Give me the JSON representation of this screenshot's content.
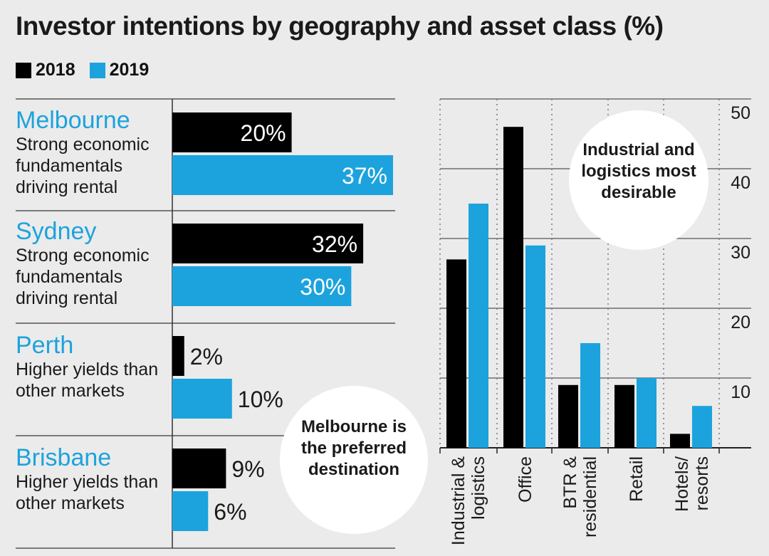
{
  "title": "Investor intentions by geography and asset class (%)",
  "legend": [
    {
      "label": "2018",
      "color": "#000000"
    },
    {
      "label": "2019",
      "color": "#1ca3dd"
    }
  ],
  "colors": {
    "y2018": "#000000",
    "y2019": "#1ca3dd",
    "accent": "#1ca3dd"
  },
  "chart_data": [
    {
      "type": "bar",
      "orientation": "horizontal",
      "categories": [
        "Melbourne",
        "Sydney",
        "Perth",
        "Brisbane"
      ],
      "descriptions": [
        "Strong economic fundamentals driving rental",
        "Strong economic fundamentals driving rental",
        "Higher yields than other markets",
        "Higher yields than other markets"
      ],
      "series": [
        {
          "name": "2018",
          "values": [
            20,
            32,
            2,
            9
          ],
          "labels": [
            "20%",
            "32%",
            "2%",
            "9%"
          ]
        },
        {
          "name": "2019",
          "values": [
            37,
            30,
            10,
            6
          ],
          "labels": [
            "37%",
            "30%",
            "10%",
            "6%"
          ]
        }
      ],
      "annotation": "Melbourne is the preferred destination",
      "grid": false
    },
    {
      "type": "bar",
      "categories": [
        "Industrial & logistics",
        "Office",
        "BTR & residential",
        "Retail",
        "Hotels/ resorts"
      ],
      "series": [
        {
          "name": "2018",
          "values": [
            27,
            46,
            9,
            9,
            2
          ]
        },
        {
          "name": "2019",
          "values": [
            35,
            29,
            15,
            10,
            6
          ]
        }
      ],
      "ylim": [
        0,
        50
      ],
      "yticks": [
        10,
        20,
        30,
        40,
        50
      ],
      "annotation": "Industrial and logistics most desirable",
      "grid": true,
      "yaxis_position": "right"
    }
  ]
}
